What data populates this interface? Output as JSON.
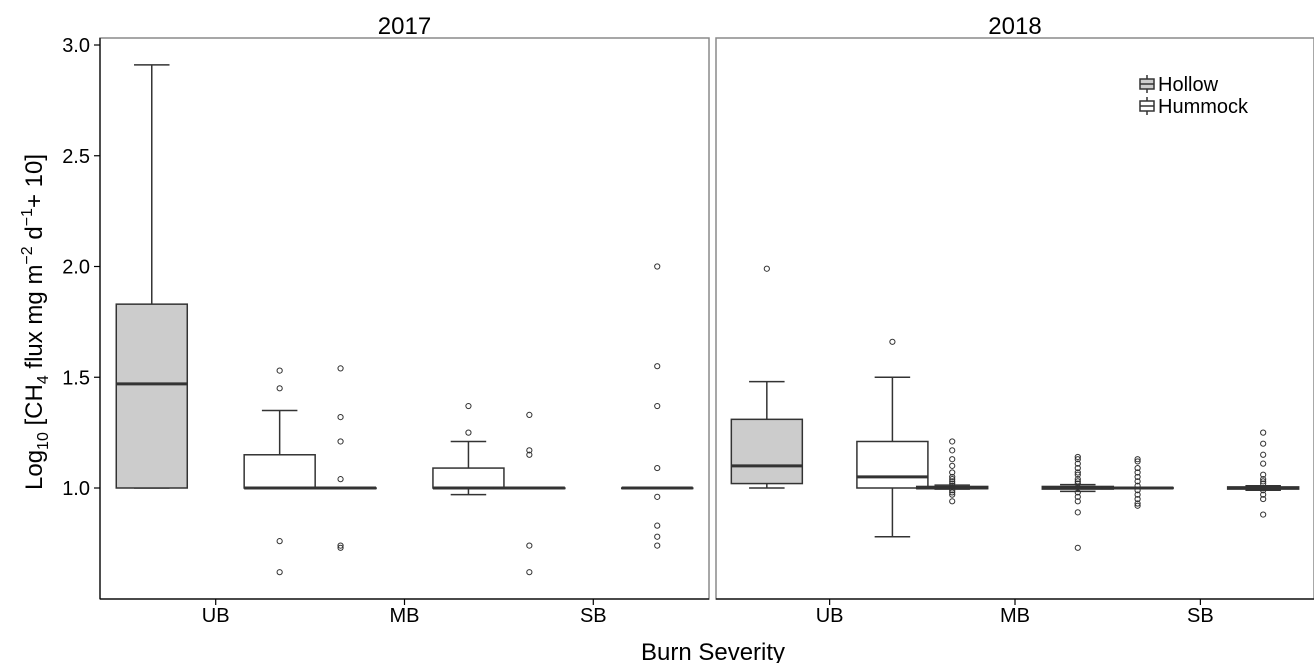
{
  "chart_data": {
    "type": "boxplot",
    "xlabel": "Burn Severity",
    "ylabel_parts": {
      "pre": "Log",
      "pre_sub": "10",
      "mid1": " [CH",
      "mid1_sub": "4",
      "mid2": " flux mg  m",
      "sup1": "−2",
      "mid3": " d",
      "sup2": "−1",
      "post": "+ 10]"
    },
    "ylim": [
      0.5,
      3.0
    ],
    "yticks": [
      "1.0",
      "1.5",
      "2.0",
      "2.5",
      "3.0"
    ],
    "categories": [
      "UB",
      "MB",
      "SB"
    ],
    "grid": false,
    "legend_position": "top-right",
    "series": [
      {
        "name": "Hollow",
        "fill": "#cccccc"
      },
      {
        "name": "Hummock",
        "fill": "#ffffff"
      }
    ],
    "panels": [
      {
        "title": "2017",
        "boxes": [
          {
            "category": "UB",
            "series": "Hollow",
            "min": 1.0,
            "q1": 1.0,
            "median": 1.47,
            "q3": 1.83,
            "max": 2.91,
            "outliers": []
          },
          {
            "category": "UB",
            "series": "Hummock",
            "min": 1.0,
            "q1": 1.0,
            "median": 1.0,
            "q3": 1.15,
            "max": 1.35,
            "outliers": [
              1.53,
              1.45,
              0.76,
              0.62
            ]
          },
          {
            "category": "MB",
            "series": "Hollow",
            "min": 1.0,
            "q1": 1.0,
            "median": 1.0,
            "q3": 1.0,
            "max": 1.0,
            "outliers": [
              1.54,
              1.32,
              1.21,
              1.04,
              0.74,
              0.73
            ]
          },
          {
            "category": "MB",
            "series": "Hummock",
            "min": 0.97,
            "q1": 1.0,
            "median": 1.0,
            "q3": 1.09,
            "max": 1.21,
            "outliers": [
              1.37,
              1.25
            ]
          },
          {
            "category": "SB",
            "series": "Hollow",
            "min": 1.0,
            "q1": 1.0,
            "median": 1.0,
            "q3": 1.0,
            "max": 1.0,
            "outliers": [
              1.33,
              1.17,
              1.15,
              0.74,
              0.62
            ]
          },
          {
            "category": "SB",
            "series": "Hummock",
            "min": 1.0,
            "q1": 1.0,
            "median": 1.0,
            "q3": 1.0,
            "max": 1.0,
            "outliers": [
              2.0,
              1.55,
              1.37,
              1.09,
              0.96,
              0.83,
              0.78,
              0.74
            ]
          }
        ]
      },
      {
        "title": "2018",
        "boxes": [
          {
            "category": "UB",
            "series": "Hollow",
            "min": 1.0,
            "q1": 1.02,
            "median": 1.1,
            "q3": 1.31,
            "max": 1.48,
            "outliers": [
              1.99
            ]
          },
          {
            "category": "UB",
            "series": "Hummock",
            "min": 0.78,
            "q1": 1.0,
            "median": 1.05,
            "q3": 1.21,
            "max": 1.5,
            "outliers": [
              1.66
            ]
          },
          {
            "category": "MB",
            "series": "Hollow",
            "min": 0.995,
            "q1": 0.997,
            "median": 1.0,
            "q3": 1.007,
            "max": 1.013,
            "outliers": [
              1.21,
              1.17,
              1.13,
              1.1,
              1.07,
              1.05,
              1.04,
              1.03,
              1.02,
              1.01,
              0.99,
              0.98,
              0.97,
              0.94
            ]
          },
          {
            "category": "MB",
            "series": "Hummock",
            "min": 0.985,
            "q1": 0.995,
            "median": 1.0,
            "q3": 1.007,
            "max": 1.015,
            "outliers": [
              1.14,
              1.13,
              1.11,
              1.09,
              1.07,
              1.06,
              1.04,
              1.03,
              1.02,
              0.98,
              0.96,
              0.94,
              0.89,
              0.73
            ]
          },
          {
            "category": "SB",
            "series": "Hollow",
            "min": 0.997,
            "q1": 0.998,
            "median": 1.0,
            "q3": 1.002,
            "max": 1.003,
            "outliers": [
              1.13,
              1.12,
              1.09,
              1.07,
              1.05,
              1.03,
              1.01,
              0.99,
              0.97,
              0.95,
              0.93,
              0.92
            ]
          },
          {
            "category": "SB",
            "series": "Hummock",
            "min": 0.99,
            "q1": 0.995,
            "median": 1.0,
            "q3": 1.005,
            "max": 1.01,
            "outliers": [
              1.25,
              1.2,
              1.15,
              1.11,
              1.06,
              1.04,
              1.03,
              1.02,
              0.99,
              0.97,
              0.95,
              0.88
            ]
          }
        ]
      }
    ]
  }
}
